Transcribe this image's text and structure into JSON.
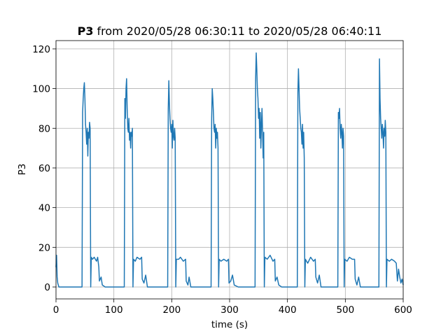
{
  "chart_data": {
    "type": "line",
    "title": {
      "bold": "P3",
      "rest": "from 2020/05/28 06:30:11 to 2020/05/28 06:40:11"
    },
    "xlabel": "time (s)",
    "ylabel": "P3",
    "xlim": [
      0,
      600
    ],
    "ylim": [
      -6,
      124.2
    ],
    "xticks": [
      0,
      100,
      200,
      300,
      400,
      500,
      600
    ],
    "yticks": [
      0,
      20,
      40,
      60,
      80,
      100,
      120
    ],
    "grid": true,
    "series": [
      {
        "name": "P3",
        "color": "#1f77b4",
        "x": [
          0,
          1,
          2,
          3,
          5,
          10,
          20,
          30,
          40,
          44,
          45,
          46,
          47,
          48,
          49,
          50,
          51,
          52,
          53,
          54,
          55,
          56,
          57,
          58,
          59,
          60,
          61,
          63,
          66,
          70,
          72,
          74,
          75,
          78,
          80,
          85,
          90,
          100,
          110,
          117,
          118,
          119,
          120,
          121,
          122,
          123,
          124,
          125,
          126,
          127,
          128,
          129,
          130,
          131,
          132,
          133,
          134,
          137,
          140,
          145,
          148,
          149,
          152,
          155,
          158,
          165,
          175,
          185,
          192,
          193,
          194,
          195,
          196,
          197,
          198,
          199,
          200,
          201,
          202,
          203,
          204,
          205,
          206,
          207,
          208,
          212,
          215,
          220,
          224,
          225,
          228,
          230,
          233,
          240,
          250,
          260,
          267,
          268,
          269,
          270,
          271,
          272,
          273,
          274,
          275,
          276,
          277,
          278,
          279,
          280,
          281,
          282,
          285,
          290,
          295,
          298,
          299,
          302,
          305,
          308,
          315,
          325,
          335,
          343,
          344,
          345,
          346,
          347,
          348,
          349,
          350,
          351,
          352,
          353,
          354,
          355,
          356,
          357,
          358,
          359,
          360,
          361,
          365,
          370,
          375,
          378,
          379,
          382,
          385,
          390,
          400,
          410,
          416,
          417,
          418,
          419,
          420,
          421,
          422,
          423,
          424,
          425,
          426,
          427,
          428,
          429,
          430,
          431,
          435,
          440,
          445,
          448,
          449,
          452,
          455,
          458,
          465,
          475,
          486,
          487,
          488,
          489,
          490,
          491,
          492,
          493,
          494,
          495,
          496,
          497,
          498,
          499,
          503,
          507,
          512,
          516,
          517,
          520,
          523,
          526,
          535,
          545,
          557,
          558,
          559,
          560,
          561,
          562,
          563,
          564,
          565,
          566,
          567,
          568,
          569,
          570,
          571,
          572,
          576,
          580,
          585,
          588,
          590,
          592,
          594,
          596,
          598,
          600
        ],
        "values": [
          10,
          16,
          5,
          2,
          0,
          0,
          0,
          0,
          0,
          0,
          0,
          88,
          95,
          100,
          103,
          95,
          82,
          78,
          72,
          80,
          66,
          78,
          75,
          83,
          80,
          0,
          15,
          14,
          15,
          13,
          15,
          10,
          3,
          5,
          1,
          0,
          0,
          0,
          0,
          0,
          0,
          95,
          85,
          100,
          105,
          90,
          80,
          78,
          85,
          74,
          78,
          70,
          78,
          76,
          80,
          0,
          14,
          13,
          15,
          14,
          15,
          4,
          2,
          6,
          0,
          0,
          0,
          0,
          0,
          0,
          90,
          104,
          92,
          85,
          80,
          78,
          82,
          70,
          84,
          76,
          74,
          80,
          75,
          0,
          14,
          14,
          15,
          13,
          14,
          3,
          1,
          5,
          0,
          0,
          0,
          0,
          0,
          0,
          85,
          100,
          95,
          88,
          80,
          78,
          82,
          70,
          80,
          75,
          78,
          70,
          0,
          14,
          13,
          14,
          13,
          14,
          2,
          3,
          6,
          1,
          0,
          0,
          0,
          0,
          0,
          105,
          118,
          110,
          100,
          95,
          85,
          90,
          75,
          88,
          70,
          82,
          90,
          78,
          65,
          78,
          0,
          15,
          14,
          16,
          13,
          14,
          3,
          5,
          1,
          0,
          0,
          0,
          0,
          0,
          98,
          110,
          100,
          90,
          85,
          80,
          78,
          72,
          82,
          70,
          78,
          65,
          0,
          14,
          12,
          15,
          13,
          14,
          5,
          2,
          6,
          0,
          0,
          0,
          0,
          0,
          88,
          85,
          90,
          80,
          75,
          82,
          78,
          70,
          80,
          76,
          0,
          14,
          13,
          15,
          14,
          14,
          4,
          1,
          5,
          0,
          0,
          0,
          0,
          0,
          115,
          95,
          85,
          80,
          75,
          82,
          78,
          70,
          80,
          76,
          84,
          78,
          0,
          14,
          13,
          14,
          13,
          12,
          3,
          9,
          5,
          2,
          4,
          1
        ]
      }
    ]
  }
}
